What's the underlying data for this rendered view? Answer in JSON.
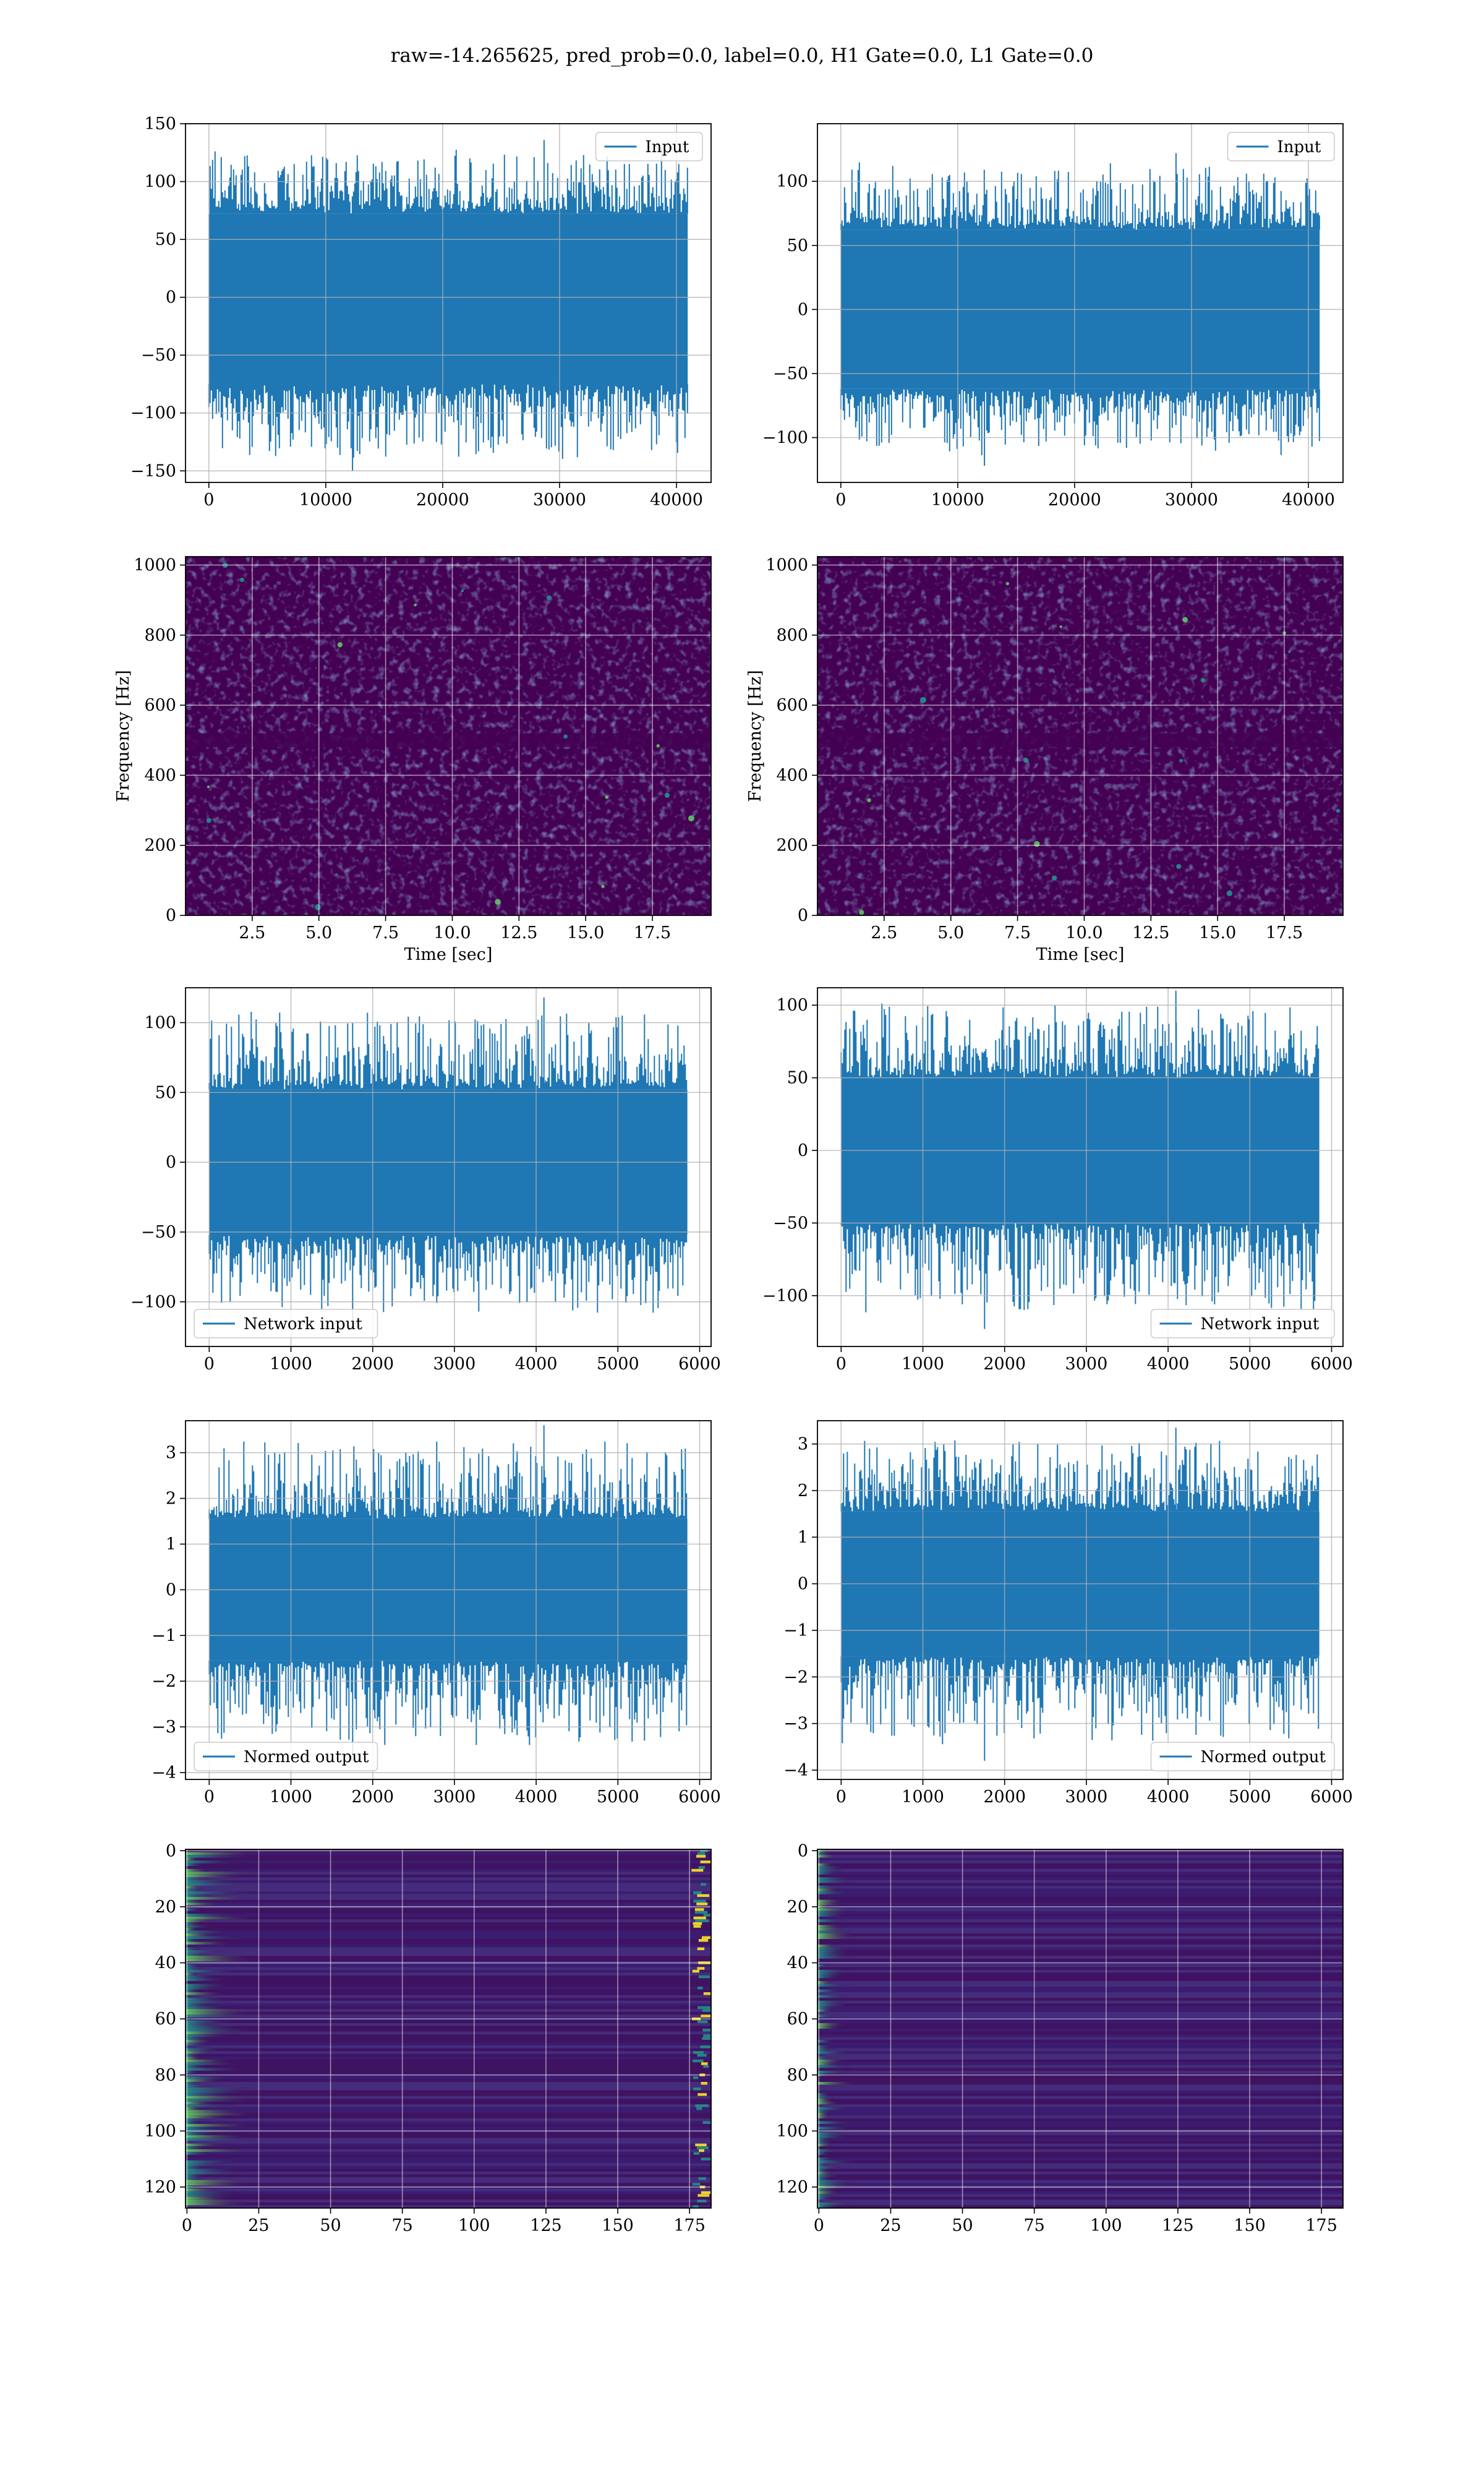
{
  "suptitle": "raw=-14.265625, pred_prob=0.0, label=0.0, H1 Gate=0.0, L1 Gate=0.0",
  "colors": {
    "line": "#1f77b4",
    "grid": "#b0b0b0",
    "viridis_dark": "#440154",
    "viridis_low": "#3b1f73",
    "viridis_mid": "#21918c",
    "viridis_high": "#5ec962",
    "viridis_max": "#fde725"
  },
  "chart_data": [
    {
      "id": "input-h1",
      "type": "line",
      "row": 0,
      "col": 0,
      "legend": "Input",
      "legend_loc": "upper right",
      "xlim": [
        -2000,
        42960
      ],
      "ylim": [
        -160,
        150
      ],
      "xticks": [
        0,
        10000,
        20000,
        30000,
        40000
      ],
      "yticks": [
        -150,
        -100,
        -50,
        0,
        50,
        100,
        150
      ],
      "ytick_labels": [
        "−150",
        "−100",
        "−50",
        "0",
        "50",
        "100",
        "150"
      ],
      "x_range": [
        0,
        40960
      ],
      "band": [
        -75,
        72
      ],
      "spike_max": 136,
      "spike_min": -150,
      "xlabel": "",
      "ylabel": "",
      "grid": true
    },
    {
      "id": "input-l1",
      "type": "line",
      "row": 0,
      "col": 1,
      "legend": "Input",
      "legend_loc": "upper right",
      "xlim": [
        -2000,
        42960
      ],
      "ylim": [
        -135,
        145
      ],
      "xticks": [
        0,
        10000,
        20000,
        30000,
        40000
      ],
      "yticks": [
        -100,
        -50,
        0,
        50,
        100
      ],
      "ytick_labels": [
        "−100",
        "−50",
        "0",
        "50",
        "100"
      ],
      "x_range": [
        0,
        40960
      ],
      "band": [
        -62,
        62
      ],
      "spike_max": 122,
      "spike_min": -122,
      "xlabel": "",
      "ylabel": "",
      "grid": true
    },
    {
      "id": "spectrogram-h1",
      "type": "heatmap",
      "row": 1,
      "col": 0,
      "xlim": [
        0,
        19.7
      ],
      "ylim": [
        0,
        1024
      ],
      "xticks": [
        2.5,
        5.0,
        7.5,
        10.0,
        12.5,
        15.0,
        17.5
      ],
      "xtick_labels": [
        "2.5",
        "5.0",
        "7.5",
        "10.0",
        "12.5",
        "15.0",
        "17.5"
      ],
      "yticks": [
        0,
        200,
        400,
        600,
        800,
        1000
      ],
      "ytick_labels": [
        "0",
        "200",
        "400",
        "600",
        "800",
        "1000"
      ],
      "xlabel": "Time [sec]",
      "ylabel": "Frequency [Hz]",
      "dark_band_hz": [
        480,
        520
      ],
      "grid": true
    },
    {
      "id": "spectrogram-l1",
      "type": "heatmap",
      "row": 1,
      "col": 1,
      "xlim": [
        0,
        19.7
      ],
      "ylim": [
        0,
        1024
      ],
      "xticks": [
        2.5,
        5.0,
        7.5,
        10.0,
        12.5,
        15.0,
        17.5
      ],
      "xtick_labels": [
        "2.5",
        "5.0",
        "7.5",
        "10.0",
        "12.5",
        "15.0",
        "17.5"
      ],
      "yticks": [
        0,
        200,
        400,
        600,
        800,
        1000
      ],
      "ytick_labels": [
        "0",
        "200",
        "400",
        "600",
        "800",
        "1000"
      ],
      "xlabel": "Time [sec]",
      "ylabel": "Frequency [Hz]",
      "dark_band_hz": [
        480,
        520
      ],
      "grid": true
    },
    {
      "id": "network-input-h1",
      "type": "line",
      "row": 2,
      "col": 0,
      "legend": "Network input",
      "legend_loc": "lower left",
      "xlim": [
        -290,
        6140
      ],
      "ylim": [
        -132,
        125
      ],
      "xticks": [
        0,
        1000,
        2000,
        3000,
        4000,
        5000,
        6000
      ],
      "yticks": [
        -100,
        -50,
        0,
        50,
        100
      ],
      "ytick_labels": [
        "−100",
        "−50",
        "0",
        "50",
        "100"
      ],
      "x_range": [
        0,
        5850
      ],
      "band": [
        -52,
        52
      ],
      "spike_max": 118,
      "spike_min": -120,
      "xlabel": "",
      "ylabel": "",
      "grid": true
    },
    {
      "id": "network-input-l1",
      "type": "line",
      "row": 2,
      "col": 1,
      "legend": "Network input",
      "legend_loc": "lower right",
      "xlim": [
        -290,
        6140
      ],
      "ylim": [
        -135,
        112
      ],
      "xticks": [
        0,
        1000,
        2000,
        3000,
        4000,
        5000,
        6000
      ],
      "yticks": [
        -100,
        -50,
        0,
        50,
        100
      ],
      "ytick_labels": [
        "−100",
        "−50",
        "0",
        "50",
        "100"
      ],
      "x_range": [
        0,
        5850
      ],
      "band": [
        -50,
        50
      ],
      "spike_max": 110,
      "spike_min": -123,
      "xlabel": "",
      "ylabel": "",
      "grid": true
    },
    {
      "id": "normed-output-h1",
      "type": "line",
      "row": 3,
      "col": 0,
      "legend": "Normed output",
      "legend_loc": "lower left",
      "xlim": [
        -290,
        6140
      ],
      "ylim": [
        -4.15,
        3.7
      ],
      "xticks": [
        0,
        1000,
        2000,
        3000,
        4000,
        5000,
        6000
      ],
      "yticks": [
        -4,
        -3,
        -2,
        -1,
        0,
        1,
        2,
        3
      ],
      "ytick_labels": [
        "−4",
        "−3",
        "−2",
        "−1",
        "0",
        "1",
        "2",
        "3"
      ],
      "x_range": [
        0,
        5850
      ],
      "band": [
        -1.55,
        1.55
      ],
      "spike_max": 3.6,
      "spike_min": -3.75,
      "xlabel": "",
      "ylabel": "",
      "grid": true
    },
    {
      "id": "normed-output-l1",
      "type": "line",
      "row": 3,
      "col": 1,
      "legend": "Normed output",
      "legend_loc": "lower right",
      "xlim": [
        -290,
        6140
      ],
      "ylim": [
        -4.2,
        3.5
      ],
      "xticks": [
        0,
        1000,
        2000,
        3000,
        4000,
        5000,
        6000
      ],
      "yticks": [
        -4,
        -3,
        -2,
        -1,
        0,
        1,
        2,
        3
      ],
      "ytick_labels": [
        "−4",
        "−3",
        "−2",
        "−1",
        "0",
        "1",
        "2",
        "3"
      ],
      "x_range": [
        0,
        5850
      ],
      "band": [
        -1.55,
        1.55
      ],
      "spike_max": 3.35,
      "spike_min": -3.8,
      "xlabel": "",
      "ylabel": "",
      "grid": true
    },
    {
      "id": "feature-map-h1",
      "type": "heatmap",
      "row": 4,
      "col": 0,
      "xlim": [
        -0.5,
        182.5
      ],
      "ylim": [
        127.5,
        -0.5
      ],
      "xticks": [
        0,
        25,
        50,
        75,
        100,
        125,
        150,
        175
      ],
      "yticks": [
        0,
        20,
        40,
        60,
        80,
        100,
        120
      ],
      "n_cols": 183,
      "n_rows": 128,
      "xlabel": "",
      "ylabel": "",
      "grid": true
    },
    {
      "id": "feature-map-l1",
      "type": "heatmap",
      "row": 4,
      "col": 1,
      "xlim": [
        -0.5,
        182.5
      ],
      "ylim": [
        127.5,
        -0.5
      ],
      "xticks": [
        0,
        25,
        50,
        75,
        100,
        125,
        150,
        175
      ],
      "yticks": [
        0,
        20,
        40,
        60,
        80,
        100,
        120
      ],
      "n_cols": 183,
      "n_rows": 128,
      "xlabel": "",
      "ylabel": "",
      "grid": true
    }
  ]
}
